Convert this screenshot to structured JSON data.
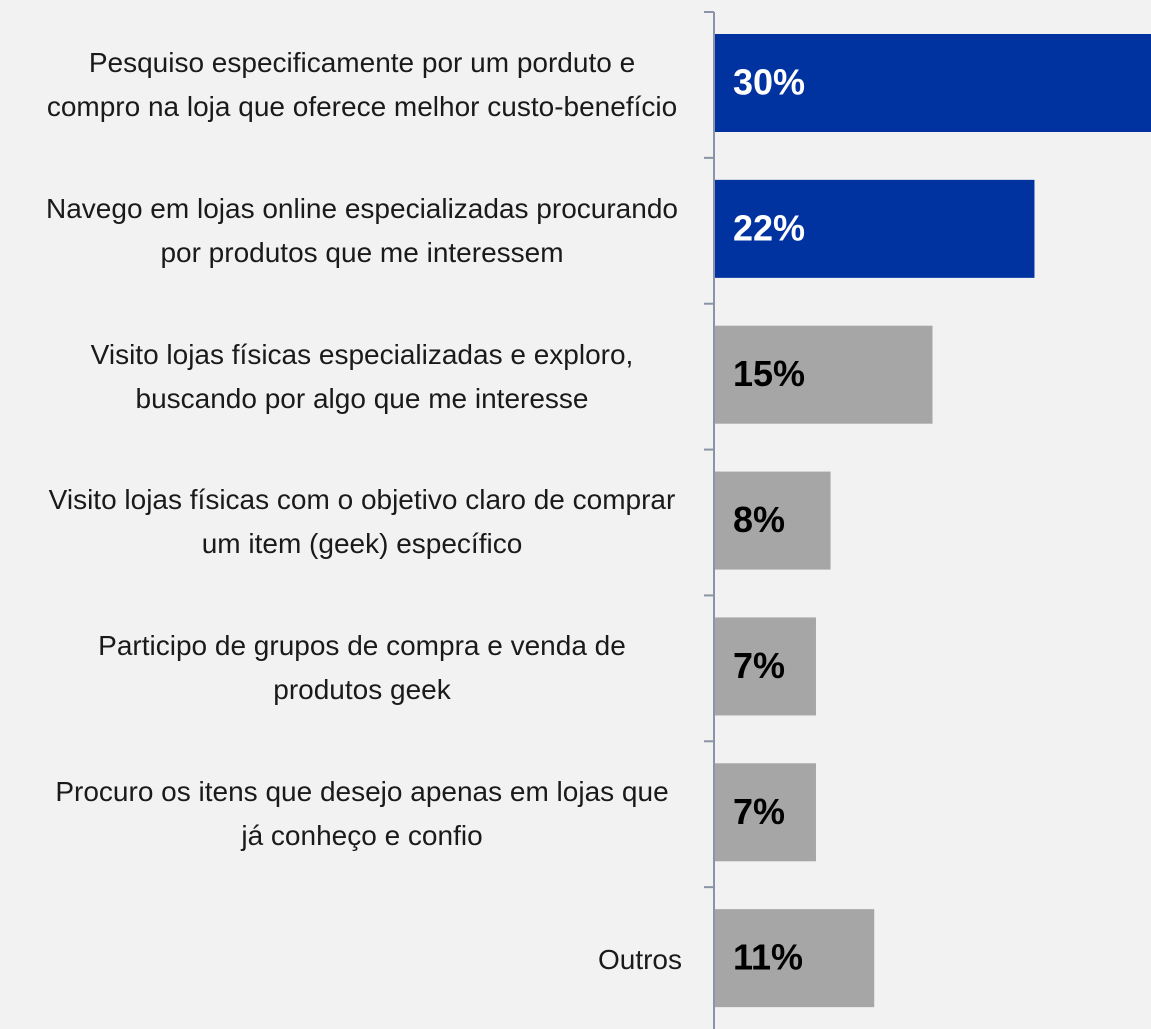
{
  "chart_data": {
    "type": "barh",
    "categories": [
      "Pesquiso especificamente por um porduto e compro na loja que oferece melhor custo-benefício",
      "Navego em lojas online especializadas procurando por produtos que me interessem",
      "Visito lojas físicas especializadas e exploro, buscando por algo que me interesse",
      "Visito lojas físicas com o objetivo claro de comprar um item (geek) específico",
      "Participo de grupos de compra e venda de produtos geek",
      "Procuro os itens que desejo apenas em lojas que já conheço e confio",
      "Outros"
    ],
    "values": [
      30,
      22,
      15,
      8,
      7,
      7,
      11
    ],
    "value_labels": [
      "30%",
      "22%",
      "15%",
      "8%",
      "7%",
      "7%",
      "11%"
    ],
    "colors": [
      "#0033a0",
      "#0033a0",
      "#a6a6a6",
      "#a6a6a6",
      "#a6a6a6",
      "#a6a6a6",
      "#a6a6a6"
    ],
    "label_colors": [
      "#ffffff",
      "#ffffff",
      "#000000",
      "#000000",
      "#000000",
      "#000000",
      "#000000"
    ],
    "xlim": [
      0,
      30
    ]
  }
}
